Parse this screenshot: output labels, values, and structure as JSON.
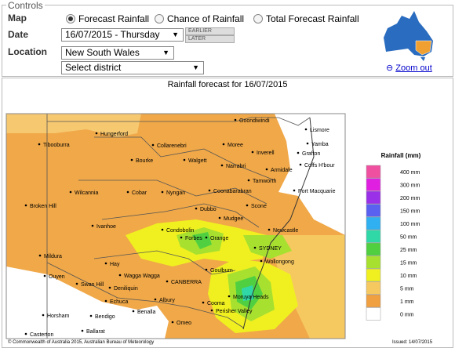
{
  "controls": {
    "legend": "Controls",
    "map_label": "Map",
    "map_options": [
      "Forecast Rainfall",
      "Chance of Rainfall",
      "Total Forecast Rainfall"
    ],
    "date_label": "Date",
    "date_value": "16/07/2015 - Thursday",
    "earlier": "EARLIER",
    "later": "LATER",
    "location_label": "Location",
    "location_value": "New South Wales",
    "district_value": "Select district",
    "zoom_out": "Zoom out"
  },
  "map": {
    "title": "Rainfall forecast for 16/07/2015",
    "places": [
      "Goondiwindi",
      "Lismore",
      "Hungerford",
      "Tibooburra",
      "Collarenebri",
      "Moree",
      "Inverell",
      "Yamba",
      "Bourke",
      "Walgett",
      "Grafton",
      "Coffs H'bour",
      "Narrabri",
      "Armidale",
      "Tamworth",
      "Wilcannia",
      "Cobar",
      "Nyngan",
      "Coonabarabran",
      "Port Macquarie",
      "Broken Hill",
      "Dubbo",
      "Scone",
      "Mudgee",
      "Ivanhoe",
      "Condobolin",
      "Newcastle",
      "Forbes",
      "Orange",
      "Mildura",
      "SYDNEY",
      "Wollongong",
      "Hay",
      "Ouyen",
      "Goulburn",
      "Swan Hill",
      "Wagga Wagga",
      "CANBERRA",
      "Deniliquin",
      "Echuca",
      "Albury",
      "Cooma",
      "Moruya Heads",
      "Perisher Valley",
      "Horsham",
      "Bendigo",
      "Benalla",
      "Omeo",
      "Casterton",
      "Ballarat"
    ],
    "legend_title": "Rainfall (mm)",
    "legend": [
      {
        "label": "400 mm",
        "color": "#f050a0"
      },
      {
        "label": "300 mm",
        "color": "#e020e0"
      },
      {
        "label": "200 mm",
        "color": "#9a30e8"
      },
      {
        "label": "150 mm",
        "color": "#5a60f0"
      },
      {
        "label": "100 mm",
        "color": "#30b0f0"
      },
      {
        "label": "50 mm",
        "color": "#30d8a8"
      },
      {
        "label": "25 mm",
        "color": "#50d040"
      },
      {
        "label": "15 mm",
        "color": "#a8e030"
      },
      {
        "label": "10 mm",
        "color": "#f0f020"
      },
      {
        "label": "5 mm",
        "color": "#f6c860"
      },
      {
        "label": "1 mm",
        "color": "#f0a040"
      },
      {
        "label": "0 mm",
        "color": "#ffffff"
      }
    ],
    "copyright": "© Commonwealth of Australia 2015, Australian Bureau of Meteorology",
    "issued": "Issued: 14/07/2015"
  }
}
